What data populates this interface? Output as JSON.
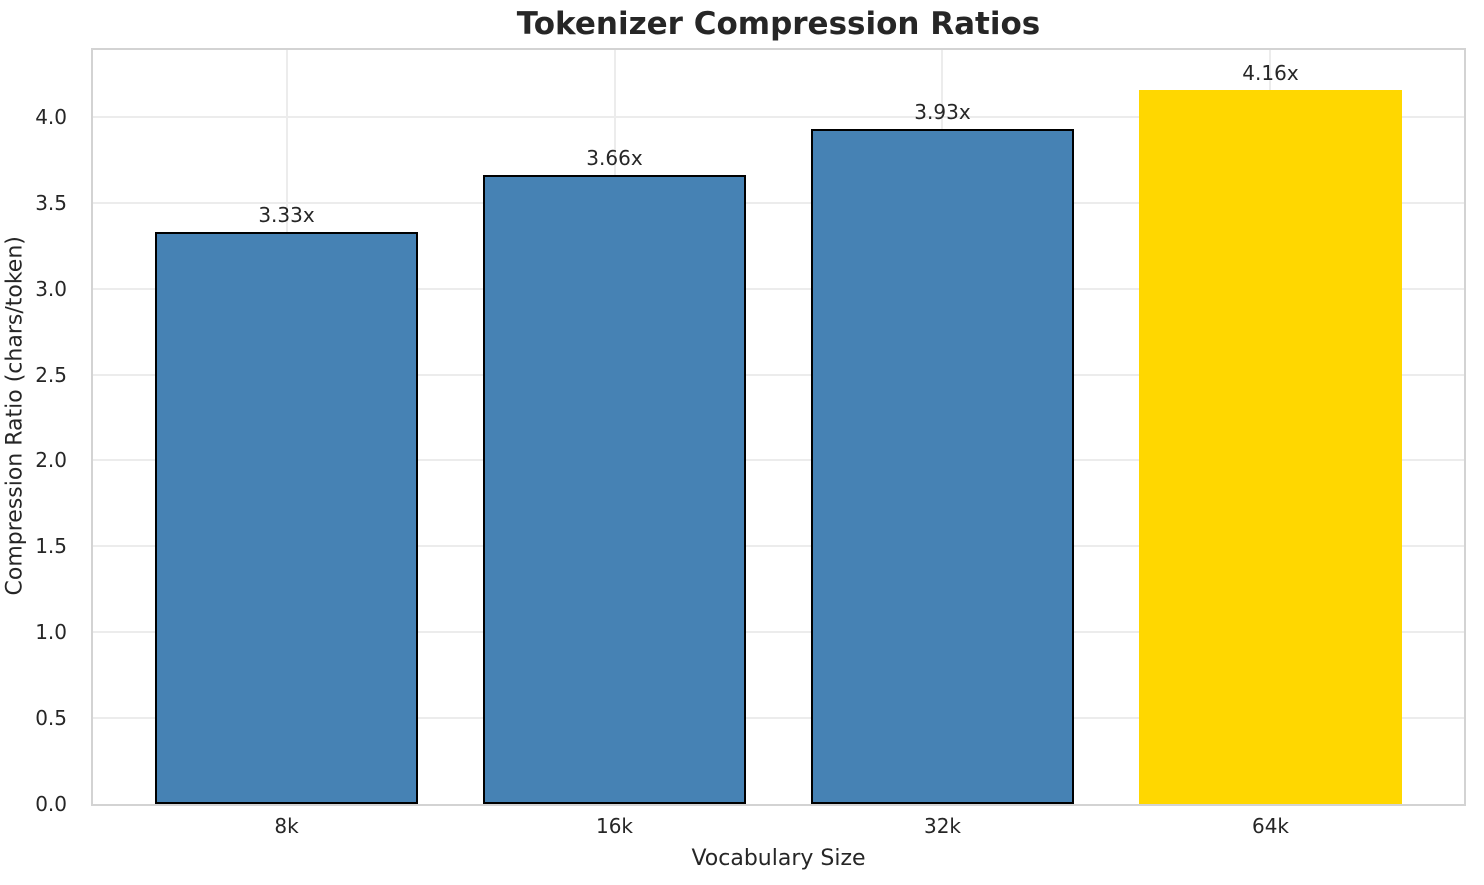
{
  "chart_data": {
    "type": "bar",
    "title": "Tokenizer Compression Ratios",
    "xlabel": "Vocabulary Size",
    "ylabel": "Compression Ratio (chars/token)",
    "categories": [
      "8k",
      "16k",
      "32k",
      "64k"
    ],
    "values": [
      3.33,
      3.66,
      3.93,
      4.16
    ],
    "bar_labels": [
      "3.33x",
      "3.66x",
      "3.93x",
      "4.16x"
    ],
    "yticks": [
      0.0,
      0.5,
      1.0,
      1.5,
      2.0,
      2.5,
      3.0,
      3.5,
      4.0
    ],
    "ytick_labels": [
      "0.0",
      "0.5",
      "1.0",
      "1.5",
      "2.0",
      "2.5",
      "3.0",
      "3.5",
      "4.0"
    ],
    "ylim": [
      0,
      4.39
    ],
    "grid": true,
    "legend": "none",
    "bar_colors": [
      "#4682B4",
      "#4682B4",
      "#4682B4",
      "#FFD700"
    ],
    "bar_edge_colors": [
      "#000000",
      "#000000",
      "#000000",
      "none"
    ],
    "colors": {
      "default_bar": "#4682B4",
      "highlight_bar": "#FFD700",
      "bar_edge": "#000000",
      "grid": "#ececec",
      "spine": "#d3d3d3",
      "text": "#262626"
    }
  }
}
